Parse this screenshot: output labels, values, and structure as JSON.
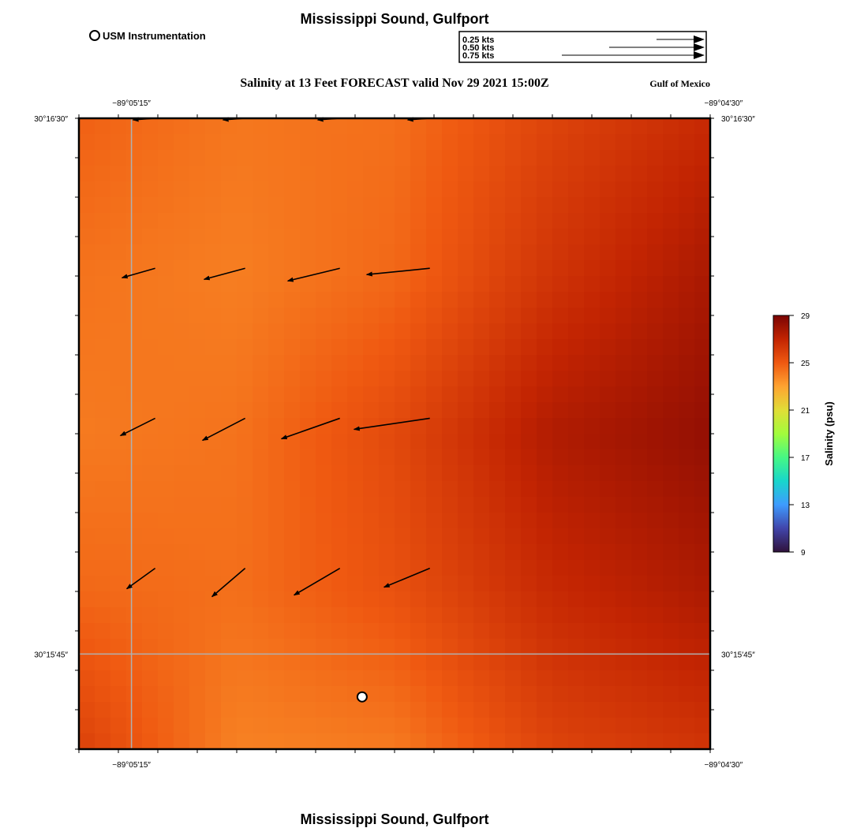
{
  "chart_data": {
    "type": "heatmap",
    "title": "Mississippi Sound, Gulfport",
    "subtitle": "Salinity at 13 Feet FORECAST valid Nov 29 2021 15:00Z",
    "footer_title": "Mississippi Sound, Gulfport",
    "region_label": "Gulf of Mexico",
    "legend": {
      "marker_label": "USM Instrumentation",
      "vector_scale": [
        {
          "label": "0.25 kts",
          "speed": 0.25
        },
        {
          "label": "0.50 kts",
          "speed": 0.5
        },
        {
          "label": "0.75 kts",
          "speed": 0.75
        }
      ]
    },
    "x_axis": {
      "ticks": [
        {
          "label": "−89°05′15″",
          "value": -89.0875
        },
        {
          "label": "−89°04′30″",
          "value": -89.075
        }
      ],
      "range": [
        -89.08861,
        -89.07528
      ]
    },
    "y_axis": {
      "ticks": [
        {
          "label": "30°16′30″",
          "value": 30.275
        },
        {
          "label": "30°15′45″",
          "value": 30.2625
        }
      ],
      "range": [
        30.26028,
        30.275
      ]
    },
    "colorbar": {
      "label": "Salinity (psu)",
      "ticks": [
        29,
        25,
        21,
        17,
        13,
        9
      ],
      "min": 9,
      "max": 29,
      "stops": [
        "#30123b",
        "#4145ab",
        "#3e9bfe",
        "#18d6cb",
        "#46f884",
        "#a2fc3c",
        "#e1dd37",
        "#fea331",
        "#ef5911",
        "#c22402",
        "#7a0403"
      ]
    },
    "salinity_field": {
      "lon": [
        -89.08861,
        -89.08528,
        -89.08194,
        -89.07861,
        -89.07528
      ],
      "lat": [
        30.275,
        30.27131,
        30.26764,
        30.26396,
        30.26028
      ],
      "values": [
        [
          24.8,
          24.2,
          24.4,
          25.8,
          26.8
        ],
        [
          24.3,
          24.0,
          24.6,
          26.4,
          27.7
        ],
        [
          24.1,
          24.3,
          25.6,
          27.5,
          28.3
        ],
        [
          24.6,
          24.4,
          25.3,
          26.8,
          27.6
        ],
        [
          25.9,
          23.9,
          24.1,
          25.8,
          26.4
        ]
      ]
    },
    "currents": [
      {
        "lon": -89.087,
        "lat": 30.275,
        "u": -0.14,
        "v": -0.01
      },
      {
        "lon": -89.0851,
        "lat": 30.275,
        "u": -0.14,
        "v": -0.01
      },
      {
        "lon": -89.0831,
        "lat": 30.275,
        "u": -0.14,
        "v": -0.01
      },
      {
        "lon": -89.0812,
        "lat": 30.275,
        "u": -0.14,
        "v": -0.01
      },
      {
        "lon": -89.087,
        "lat": 30.2715,
        "u": -0.21,
        "v": -0.06
      },
      {
        "lon": -89.0851,
        "lat": 30.2715,
        "u": -0.26,
        "v": -0.07
      },
      {
        "lon": -89.0831,
        "lat": 30.2715,
        "u": -0.33,
        "v": -0.08
      },
      {
        "lon": -89.0812,
        "lat": 30.2715,
        "u": -0.4,
        "v": -0.04
      },
      {
        "lon": -89.087,
        "lat": 30.268,
        "u": -0.22,
        "v": -0.11
      },
      {
        "lon": -89.0851,
        "lat": 30.268,
        "u": -0.27,
        "v": -0.14
      },
      {
        "lon": -89.0831,
        "lat": 30.268,
        "u": -0.37,
        "v": -0.13
      },
      {
        "lon": -89.0812,
        "lat": 30.268,
        "u": -0.48,
        "v": -0.07
      },
      {
        "lon": -89.087,
        "lat": 30.2645,
        "u": -0.18,
        "v": -0.13
      },
      {
        "lon": -89.0851,
        "lat": 30.2645,
        "u": -0.21,
        "v": -0.18
      },
      {
        "lon": -89.0831,
        "lat": 30.2645,
        "u": -0.29,
        "v": -0.17
      },
      {
        "lon": -89.0812,
        "lat": 30.2645,
        "u": -0.29,
        "v": -0.12
      }
    ],
    "station": {
      "lon": -89.08263,
      "lat": 30.2615
    }
  }
}
